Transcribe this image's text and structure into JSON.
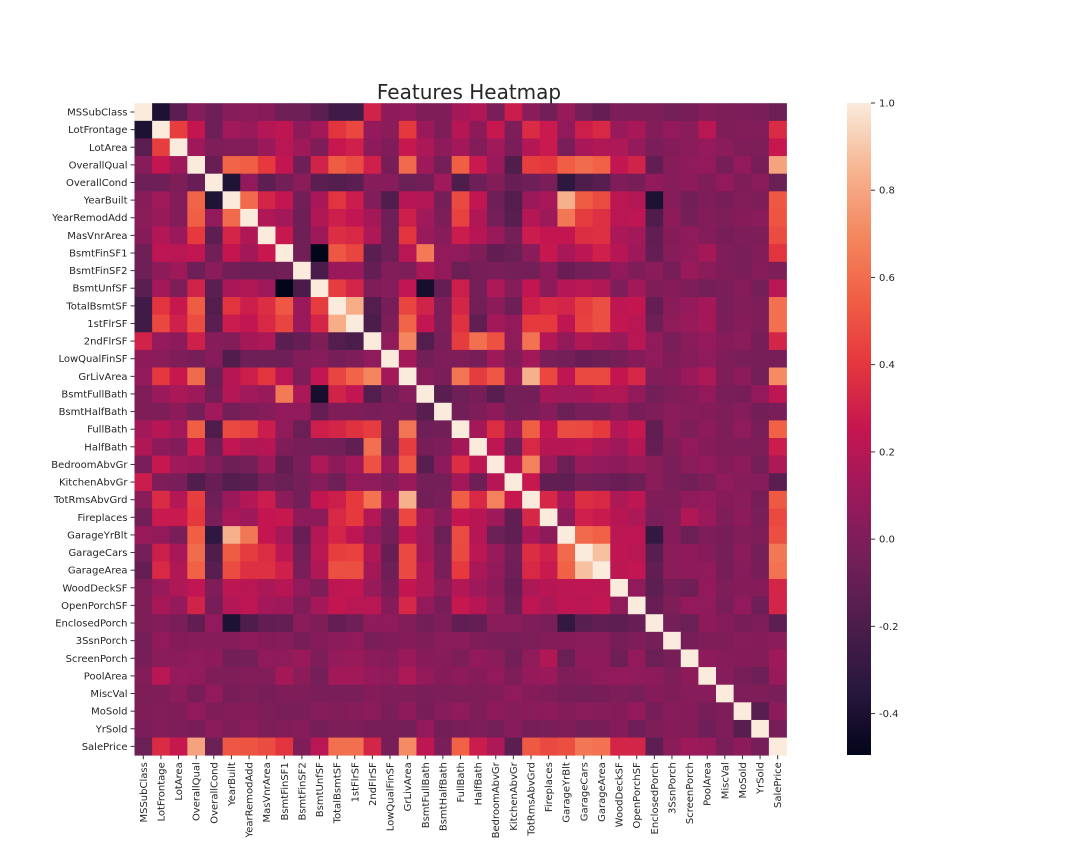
{
  "chart_data": {
    "type": "heatmap",
    "title": "Features Heatmap",
    "labels": [
      "MSSubClass",
      "LotFrontage",
      "LotArea",
      "OverallQual",
      "OverallCond",
      "YearBuilt",
      "YearRemodAdd",
      "MasVnrArea",
      "BsmtFinSF1",
      "BsmtFinSF2",
      "BsmtUnfSF",
      "TotalBsmtSF",
      "1stFlrSF",
      "2ndFlrSF",
      "LowQualFinSF",
      "GrLivArea",
      "BsmtFullBath",
      "BsmtHalfBath",
      "FullBath",
      "HalfBath",
      "BedroomAbvGr",
      "KitchenAbvGr",
      "TotRmsAbvGrd",
      "Fireplaces",
      "GarageYrBlt",
      "GarageCars",
      "GarageArea",
      "WoodDeckSF",
      "OpenPorchSF",
      "EnclosedPorch",
      "3SsnPorch",
      "ScreenPorch",
      "PoolArea",
      "MiscVal",
      "MoSold",
      "YrSold",
      "SalePrice"
    ],
    "symmetric": true,
    "upper_triangle": [
      [
        1,
        -0.39,
        -0.14,
        0.03,
        -0.06,
        0.03,
        0.04,
        0.02,
        -0.07,
        -0.07,
        -0.14,
        -0.24,
        -0.25,
        0.31,
        0.05,
        0.07,
        0.0,
        0.0,
        0.13,
        0.18,
        -0.02,
        0.28,
        0.04,
        -0.05,
        0.09,
        -0.04,
        -0.1,
        -0.01,
        -0.01,
        -0.01,
        -0.04,
        -0.03,
        0.01,
        -0.01,
        -0.01,
        -0.02,
        -0.08
      ],
      [
        1,
        0.43,
        0.25,
        -0.06,
        0.12,
        0.09,
        0.19,
        0.23,
        0.05,
        0.13,
        0.39,
        0.46,
        0.08,
        0.04,
        0.4,
        0.1,
        -0.01,
        0.2,
        0.05,
        0.26,
        -0.01,
        0.35,
        0.27,
        0.07,
        0.29,
        0.34,
        0.09,
        0.15,
        0.01,
        0.07,
        0.04,
        0.21,
        0.0,
        0.01,
        0.01,
        0.35
      ],
      [
        1,
        0.11,
        -0.01,
        0.01,
        0.01,
        0.1,
        0.21,
        0.11,
        0.0,
        0.26,
        0.3,
        0.05,
        0.0,
        0.26,
        0.16,
        0.05,
        0.13,
        0.01,
        0.12,
        -0.02,
        0.19,
        0.27,
        -0.02,
        0.15,
        0.18,
        0.17,
        0.08,
        -0.02,
        0.02,
        0.04,
        0.08,
        0.04,
        0.0,
        -0.01,
        0.26
      ],
      [
        1,
        -0.09,
        0.57,
        0.55,
        0.41,
        0.24,
        -0.06,
        0.31,
        0.54,
        0.48,
        0.3,
        -0.03,
        0.59,
        0.11,
        -0.04,
        0.55,
        0.27,
        0.1,
        -0.18,
        0.43,
        0.4,
        0.55,
        0.6,
        0.56,
        0.24,
        0.31,
        -0.11,
        0.03,
        0.06,
        0.07,
        -0.03,
        0.07,
        -0.03,
        0.79
      ],
      [
        1,
        -0.38,
        0.07,
        -0.13,
        -0.05,
        0.04,
        -0.14,
        -0.17,
        -0.14,
        0.03,
        0.03,
        -0.08,
        -0.05,
        0.12,
        -0.19,
        -0.06,
        0.01,
        -0.09,
        -0.06,
        -0.02,
        -0.32,
        -0.19,
        -0.15,
        0.0,
        -0.03,
        0.07,
        0.03,
        0.05,
        0.0,
        0.07,
        0.0,
        0.04,
        -0.08
      ],
      [
        1,
        0.59,
        0.32,
        0.25,
        -0.05,
        0.15,
        0.39,
        0.28,
        0.01,
        -0.18,
        0.2,
        0.19,
        -0.04,
        0.47,
        0.24,
        -0.07,
        -0.17,
        0.1,
        0.15,
        0.83,
        0.54,
        0.48,
        0.22,
        0.19,
        -0.39,
        0.03,
        -0.05,
        0.0,
        -0.03,
        0.01,
        -0.01,
        0.52
      ],
      [
        1,
        0.18,
        0.13,
        -0.07,
        0.18,
        0.29,
        0.24,
        0.14,
        -0.06,
        0.29,
        0.12,
        -0.01,
        0.44,
        0.18,
        -0.04,
        -0.15,
        0.19,
        0.11,
        0.64,
        0.42,
        0.37,
        0.21,
        0.23,
        -0.19,
        0.05,
        -0.04,
        0.01,
        -0.01,
        0.02,
        0.04,
        0.51
      ],
      [
        1,
        0.26,
        -0.07,
        0.11,
        0.36,
        0.34,
        0.17,
        -0.07,
        0.39,
        0.09,
        0.03,
        0.28,
        0.2,
        0.1,
        -0.04,
        0.28,
        0.25,
        0.25,
        0.36,
        0.37,
        0.16,
        0.13,
        -0.11,
        0.02,
        0.06,
        0.01,
        -0.03,
        -0.01,
        -0.01,
        0.48
      ],
      [
        1,
        -0.05,
        -0.5,
        0.52,
        0.45,
        -0.14,
        -0.06,
        0.21,
        0.65,
        0.07,
        0.06,
        0.0,
        -0.11,
        -0.08,
        0.04,
        0.26,
        0.15,
        0.22,
        0.3,
        0.2,
        0.11,
        -0.1,
        0.03,
        0.06,
        0.14,
        0.0,
        -0.02,
        0.01,
        0.39
      ],
      [
        1,
        -0.21,
        0.1,
        0.1,
        -0.1,
        0.01,
        -0.01,
        0.16,
        0.07,
        -0.08,
        -0.03,
        -0.02,
        -0.04,
        -0.04,
        0.05,
        -0.09,
        -0.04,
        -0.02,
        0.07,
        0.0,
        0.04,
        -0.03,
        0.09,
        0.04,
        0.0,
        -0.02,
        0.03,
        -0.01
      ],
      [
        1,
        0.42,
        0.32,
        0.0,
        0.03,
        0.24,
        -0.42,
        -0.1,
        0.29,
        -0.04,
        0.17,
        0.03,
        0.25,
        0.05,
        0.19,
        0.21,
        0.18,
        -0.01,
        0.13,
        0.0,
        0.02,
        -0.01,
        -0.04,
        -0.02,
        0.03,
        -0.04,
        0.21
      ],
      [
        1,
        0.82,
        -0.17,
        -0.03,
        0.45,
        0.31,
        0.0,
        0.32,
        -0.05,
        0.05,
        -0.07,
        0.29,
        0.34,
        0.32,
        0.43,
        0.49,
        0.23,
        0.25,
        -0.1,
        0.04,
        0.08,
        0.13,
        -0.02,
        0.01,
        -0.01,
        0.61
      ],
      [
        1,
        -0.2,
        -0.01,
        0.57,
        0.24,
        0.0,
        0.38,
        -0.12,
        0.13,
        0.07,
        0.41,
        0.41,
        0.23,
        0.44,
        0.49,
        0.24,
        0.21,
        -0.07,
        0.06,
        0.09,
        0.13,
        -0.02,
        0.03,
        -0.01,
        0.61
      ],
      [
        1,
        0.06,
        0.69,
        -0.17,
        -0.02,
        0.42,
        0.61,
        0.5,
        0.06,
        0.62,
        0.19,
        0.07,
        0.18,
        0.14,
        0.09,
        0.21,
        0.06,
        -0.02,
        0.04,
        0.08,
        0.02,
        0.04,
        -0.03,
        0.32
      ],
      [
        1,
        0.13,
        -0.05,
        -0.01,
        0.0,
        -0.03,
        0.11,
        0.01,
        0.13,
        -0.02,
        -0.04,
        -0.09,
        -0.07,
        -0.03,
        0.02,
        0.06,
        0.0,
        0.03,
        0.06,
        0.0,
        -0.02,
        -0.03,
        -0.03
      ],
      [
        1,
        0.03,
        -0.02,
        0.63,
        0.42,
        0.52,
        0.1,
        0.83,
        0.46,
        0.23,
        0.47,
        0.47,
        0.25,
        0.33,
        0.01,
        0.02,
        0.1,
        0.17,
        0.0,
        0.05,
        -0.04,
        0.71
      ],
      [
        1,
        -0.15,
        -0.06,
        -0.03,
        -0.15,
        -0.04,
        -0.05,
        0.14,
        0.12,
        0.13,
        0.18,
        0.18,
        0.07,
        -0.05,
        0.0,
        0.02,
        0.07,
        -0.02,
        -0.03,
        0.07,
        0.23
      ],
      [
        1,
        -0.05,
        -0.01,
        0.05,
        -0.04,
        -0.02,
        0.03,
        -0.08,
        -0.02,
        -0.02,
        0.04,
        -0.03,
        -0.01,
        0.04,
        0.03,
        0.02,
        -0.01,
        0.03,
        -0.05,
        -0.02
      ],
      [
        1,
        0.14,
        0.36,
        0.13,
        0.55,
        0.24,
        0.48,
        0.47,
        0.41,
        0.19,
        0.26,
        -0.12,
        0.04,
        -0.01,
        0.05,
        -0.01,
        0.06,
        -0.02,
        0.56
      ],
      [
        1,
        0.23,
        -0.07,
        0.34,
        0.2,
        0.2,
        0.22,
        0.16,
        0.11,
        0.2,
        -0.1,
        0.0,
        0.07,
        0.02,
        0.0,
        -0.01,
        -0.01,
        0.28
      ],
      [
        1,
        0.2,
        0.68,
        0.11,
        -0.08,
        0.09,
        0.07,
        0.05,
        0.09,
        0.04,
        -0.02,
        0.04,
        0.07,
        0.01,
        0.05,
        -0.04,
        0.17
      ],
      [
        1,
        0.26,
        -0.12,
        -0.12,
        -0.05,
        -0.06,
        -0.09,
        -0.07,
        0.04,
        -0.02,
        -0.05,
        -0.01,
        0.06,
        0.03,
        0.03,
        -0.14
      ],
      [
        1,
        0.33,
        0.15,
        0.36,
        0.34,
        0.17,
        0.23,
        0.0,
        -0.01,
        0.06,
        0.08,
        0.02,
        0.04,
        -0.03,
        0.53
      ],
      [
        1,
        0.05,
        0.3,
        0.27,
        0.2,
        0.17,
        -0.02,
        0.01,
        0.18,
        0.1,
        0.0,
        0.05,
        -0.02,
        0.47
      ],
      [
        1,
        0.59,
        0.56,
        0.22,
        0.23,
        -0.3,
        0.02,
        -0.08,
        -0.01,
        -0.03,
        0.01,
        0.0,
        0.49
      ],
      [
        1,
        0.88,
        0.23,
        0.21,
        -0.15,
        0.04,
        0.05,
        0.02,
        -0.04,
        0.04,
        -0.04,
        0.64
      ],
      [
        1,
        0.22,
        0.24,
        -0.12,
        0.04,
        0.05,
        0.06,
        -0.03,
        0.03,
        -0.03,
        0.62
      ],
      [
        1,
        0.06,
        -0.13,
        -0.03,
        -0.07,
        0.07,
        -0.01,
        0.02,
        0.02,
        0.32
      ],
      [
        1,
        -0.09,
        -0.01,
        0.07,
        0.06,
        -0.02,
        0.07,
        -0.06,
        0.32
      ],
      [
        1,
        -0.04,
        -0.08,
        0.05,
        0.02,
        -0.03,
        -0.01,
        -0.13
      ],
      [
        1,
        -0.03,
        -0.01,
        0.0,
        0.03,
        0.02,
        0.04
      ],
      [
        1,
        0.05,
        0.03,
        0.02,
        0.01,
        0.11
      ],
      [
        1,
        0.03,
        -0.03,
        -0.06,
        0.09
      ],
      [
        1,
        -0.01,
        0.0,
        -0.02
      ],
      [
        1,
        -0.15,
        0.05
      ],
      [
        1,
        -0.03
      ],
      [
        1
      ]
    ],
    "colormap": "rocket",
    "vmin": -0.495,
    "vmax": 1.0,
    "colorbar_ticks": [
      "1.0",
      "0.8",
      "0.6",
      "0.4",
      "0.2",
      "0.0",
      "-0.2",
      "-0.4"
    ],
    "grid": false,
    "legend": "colorbar-right"
  }
}
